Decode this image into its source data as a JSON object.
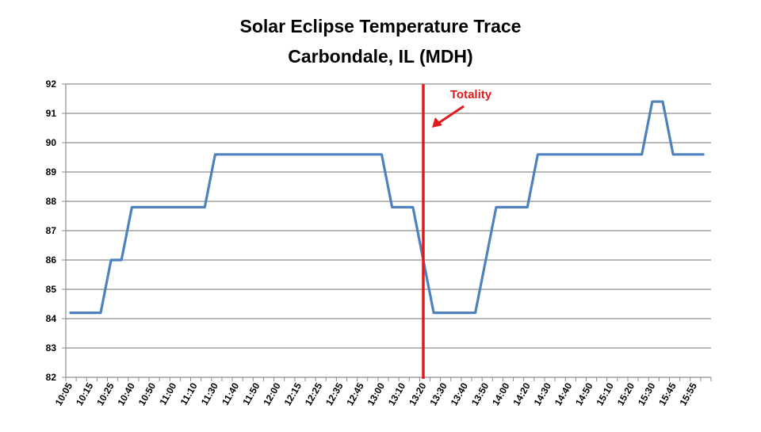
{
  "chart_data": {
    "type": "line",
    "title": "Solar Eclipse Temperature Trace",
    "subtitle": "Carbondale, IL (MDH)",
    "xlabel": "",
    "ylabel": "",
    "ylim": [
      82,
      92
    ],
    "yticks": [
      82,
      83,
      84,
      85,
      86,
      87,
      88,
      89,
      90,
      91,
      92
    ],
    "grid": "horizontal",
    "legend": "none",
    "categories": [
      "10:05",
      "",
      "10:15",
      "",
      "10:25",
      "",
      "10:40",
      "",
      "10:50",
      "",
      "11:00",
      "",
      "11:10",
      "",
      "11:30",
      "",
      "11:40",
      "",
      "11:50",
      "",
      "12:00",
      "",
      "12:15",
      "",
      "12:25",
      "",
      "12:35",
      "",
      "12:45",
      "",
      "13:00",
      "",
      "13:10",
      "",
      "13:20",
      "",
      "13:30",
      "",
      "13:40",
      "",
      "13:50",
      "",
      "14:00",
      "",
      "14:20",
      "",
      "14:30",
      "",
      "14:40",
      "",
      "14:50",
      "",
      "15:10",
      "",
      "15:20",
      "",
      "15:30",
      "",
      "15:45",
      "",
      "15:55",
      ""
    ],
    "series": [
      {
        "color": "#4f81bd",
        "values": [
          84.2,
          84.2,
          84.2,
          84.2,
          86,
          86,
          87.8,
          87.8,
          87.8,
          87.8,
          87.8,
          87.8,
          87.8,
          87.8,
          89.6,
          89.6,
          89.6,
          89.6,
          89.6,
          89.6,
          89.6,
          89.6,
          89.6,
          89.6,
          89.6,
          89.6,
          89.6,
          89.6,
          89.6,
          89.6,
          89.6,
          87.8,
          87.8,
          87.8,
          86,
          84.2,
          84.2,
          84.2,
          84.2,
          84.2,
          86,
          87.8,
          87.8,
          87.8,
          87.8,
          89.6,
          89.6,
          89.6,
          89.6,
          89.6,
          89.6,
          89.6,
          89.6,
          89.6,
          89.6,
          89.6,
          91.4,
          91.4,
          89.6,
          89.6,
          89.6,
          89.6
        ]
      }
    ],
    "annotations": [
      {
        "text": "Totality",
        "x": "13:20",
        "type": "vertical-line",
        "color": "#e31a1c"
      }
    ]
  }
}
